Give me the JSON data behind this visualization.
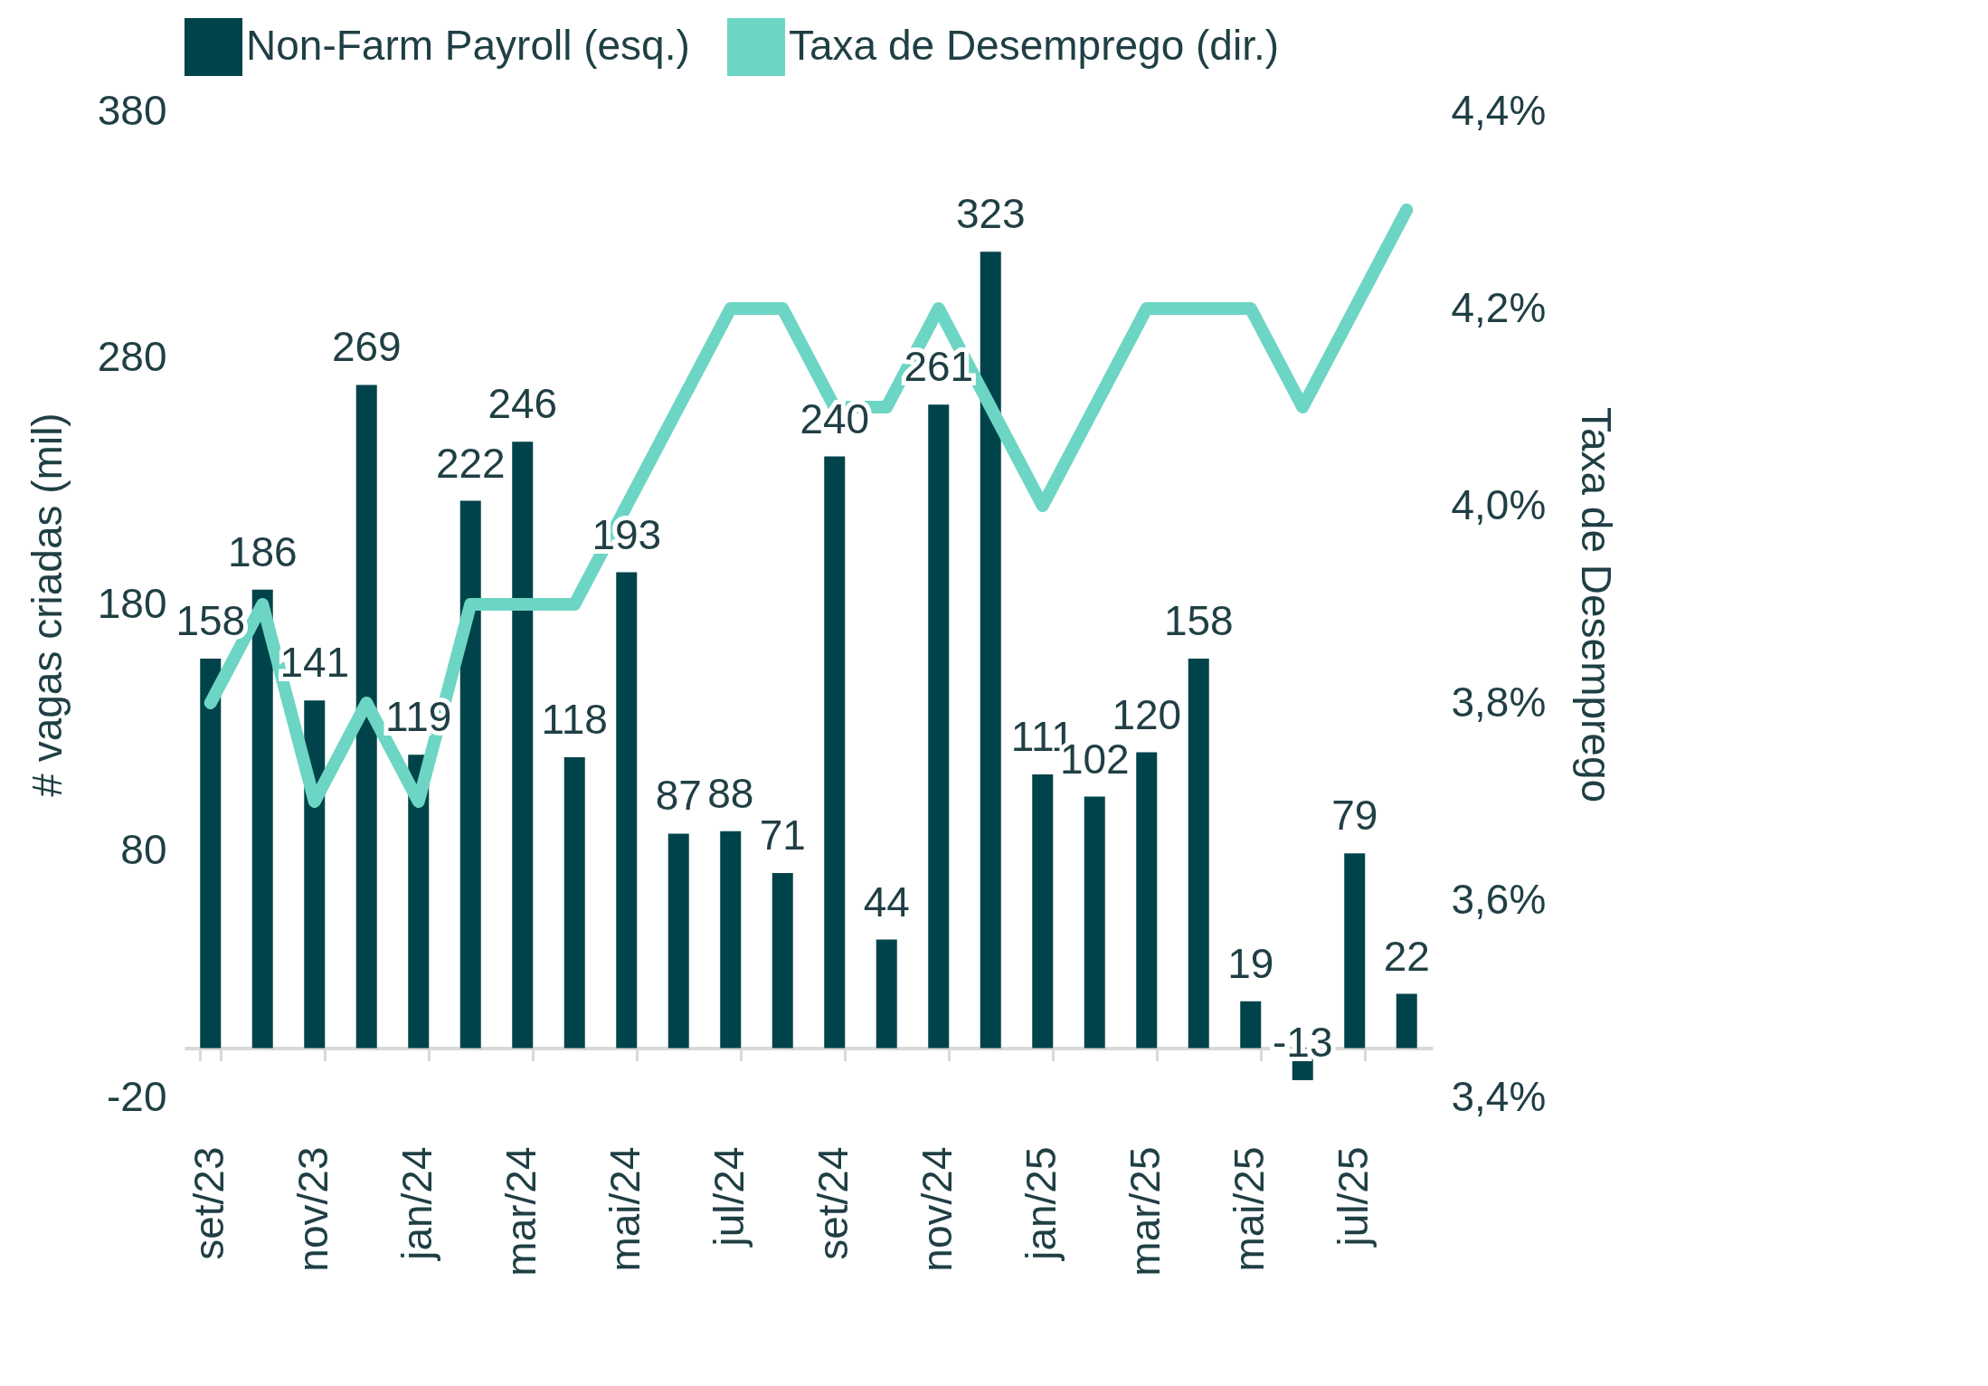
{
  "chart_data": {
    "type": "bar",
    "ylabel": "# vagas criadas (mil)",
    "y2label": "Taxa de Desemprego",
    "categories": [
      "set/23",
      null,
      "nov/23",
      null,
      "jan/24",
      null,
      "mar/24",
      null,
      "mai/24",
      null,
      "jul/24",
      null,
      "set/24",
      null,
      "nov/24",
      null,
      "jan/25",
      null,
      "mar/25",
      null,
      "mai/25",
      null,
      "jul/25",
      null
    ],
    "series": [
      {
        "name": "Non-Farm Payroll (esq.)",
        "color": "#00434a",
        "values": [
          158,
          186,
          141,
          269,
          119,
          222,
          246,
          118,
          193,
          87,
          88,
          71,
          240,
          44,
          261,
          323,
          111,
          102,
          120,
          158,
          19,
          -13,
          79,
          22
        ],
        "value_labels": [
          "158",
          "186",
          "141",
          "269",
          "119",
          "222",
          "246",
          "118",
          "193",
          "87",
          "88",
          "71",
          "240",
          "44",
          "261",
          "323",
          "111",
          "102",
          "120",
          "158",
          "19",
          "-13",
          "79",
          "22"
        ]
      },
      {
        "name": "Taxa de Desemprego (dir.)",
        "type": "line",
        "axis": "y2",
        "color": "#6dd5c4",
        "values": [
          3.8,
          3.9,
          3.7,
          3.8,
          3.7,
          3.9,
          3.9,
          3.9,
          4.0,
          4.1,
          4.2,
          4.2,
          4.1,
          4.1,
          4.2,
          4.1,
          4.0,
          4.1,
          4.2,
          4.2,
          4.2,
          4.1,
          4.2,
          4.3
        ]
      }
    ],
    "ylim": [
      -20,
      380
    ],
    "yticks": [
      -20,
      80,
      180,
      280,
      380
    ],
    "y2lim": [
      3.4,
      4.4
    ],
    "y2ticks": [
      {
        "value": 3.4,
        "label": "3,4%"
      },
      {
        "value": 3.6,
        "label": "3,6%"
      },
      {
        "value": 3.8,
        "label": "3,8%"
      },
      {
        "value": 4.0,
        "label": "4,0%"
      },
      {
        "value": 4.2,
        "label": "4,2%"
      },
      {
        "value": 4.4,
        "label": "4,4%"
      }
    ],
    "grid": false,
    "legend": "top",
    "marker": "none",
    "line_style": "solid"
  }
}
